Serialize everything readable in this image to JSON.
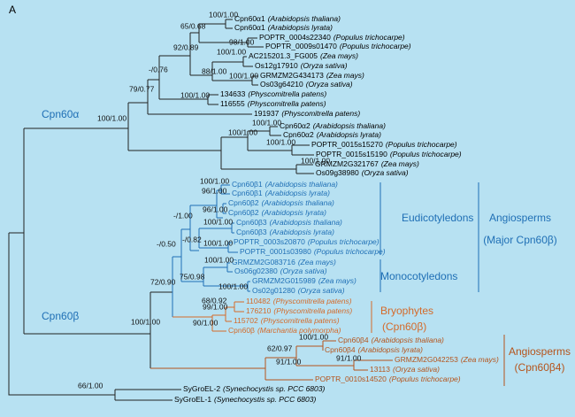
{
  "panel_label": "A",
  "leaves": [
    {
      "name": "Cpn60α1",
      "species": "(Arabidopsis thaliana)",
      "color": "#000000"
    },
    {
      "name": "Cpn60α1",
      "species": "(Arabidopsis lyrata)",
      "color": "#000000"
    },
    {
      "name": "POPTR_0004s22340",
      "species": "(Populus trichocarpe)",
      "color": "#000000"
    },
    {
      "name": "POPTR_0009s01470",
      "species": "(Populus trichocarpe)",
      "color": "#000000"
    },
    {
      "name": "AC215201.3_FG005",
      "species": "(Zea mays)",
      "color": "#000000"
    },
    {
      "name": "Os12g17910",
      "species": "(Oryza sativa)",
      "color": "#000000"
    },
    {
      "name": "GRMZM2G434173",
      "species": "(Zea mays)",
      "color": "#000000"
    },
    {
      "name": "Os03g64210",
      "species": "(Oryza sativa)",
      "color": "#000000"
    },
    {
      "name": "134633",
      "species": "(Physcomitrella patens)",
      "color": "#000000"
    },
    {
      "name": "116555",
      "species": "(Physcomitrella patens)",
      "color": "#000000"
    },
    {
      "name": "191937",
      "species": "(Physcomitrella patens)",
      "color": "#000000"
    },
    {
      "name": "Cpn60α2",
      "species": "(Arabidopsis thaliana)",
      "color": "#000000"
    },
    {
      "name": "Cpn60α2",
      "species": "(Arabidopsis lyrata)",
      "color": "#000000"
    },
    {
      "name": "POPTR_0015s15270",
      "species": "(Populus trichocarpe)",
      "color": "#000000"
    },
    {
      "name": "POPTR_0015s15190",
      "species": "(Populus trichocarpe)",
      "color": "#000000"
    },
    {
      "name": "GRMZM2G321767",
      "species": "(Zea mays)",
      "color": "#000000"
    },
    {
      "name": "Os09g38980",
      "species": "(Oryza sativa)",
      "color": "#000000"
    },
    {
      "name": "Cpn60β1",
      "species": "(Arabidopsis thaliana)",
      "color": "#1f6fb5"
    },
    {
      "name": "Cpn60β1",
      "species": "(Arabidopsis lyrata)",
      "color": "#1f6fb5"
    },
    {
      "name": "Cpn60β2",
      "species": "(Arabidopsis thaliana)",
      "color": "#1f6fb5"
    },
    {
      "name": "Cpn60β2",
      "species": "(Arabidopsis lyrata)",
      "color": "#1f6fb5"
    },
    {
      "name": "Cpn60β3",
      "species": "(Arabidopsis thaliana)",
      "color": "#1f6fb5"
    },
    {
      "name": "Cpn60β3",
      "species": "(Arabidopsis lyrata)",
      "color": "#1f6fb5"
    },
    {
      "name": "POPTR_0003s20870",
      "species": "(Populus trichocarpe)",
      "color": "#1f6fb5"
    },
    {
      "name": "POPTR_0001s03980",
      "species": "(Populus trichocarpe)",
      "color": "#1f6fb5"
    },
    {
      "name": "GRMZM2G083716",
      "species": "(Zea mays)",
      "color": "#1f6fb5"
    },
    {
      "name": "Os06g02380",
      "species": "(Oryza sativa)",
      "color": "#1f6fb5"
    },
    {
      "name": "GRMZM2G015989",
      "species": "(Zea mays)",
      "color": "#1f6fb5"
    },
    {
      "name": "Os02g01280",
      "species": "(Oryza sativa)",
      "color": "#1f6fb5"
    },
    {
      "name": "110482",
      "species": "(Physcomitrella patens)",
      "color": "#d46a2a"
    },
    {
      "name": "176210",
      "species": "(Physcomitrella patens)",
      "color": "#d46a2a"
    },
    {
      "name": "115702",
      "species": "(Physcomitrella patens)",
      "color": "#d46a2a"
    },
    {
      "name": "Cpn60β",
      "species": "(Marchantia polymorpha)",
      "color": "#d46a2a"
    },
    {
      "name": "Cpn60β4",
      "species": "(Arabidopsis thaliana)",
      "color": "#b5541c"
    },
    {
      "name": "Cpn60β4",
      "species": "(Arabidopsis lyrata)",
      "color": "#b5541c"
    },
    {
      "name": "GRMZM2G042253",
      "species": "(Zea mays)",
      "color": "#b5541c"
    },
    {
      "name": "13113",
      "species": "(Oryza sativa)",
      "color": "#b5541c"
    },
    {
      "name": "POPTR_0010s14520",
      "species": "(Populus trichocarpe)",
      "color": "#b5541c"
    },
    {
      "name": "SyGroEL-2",
      "species": "(Synechocystis sp. PCC 6803)",
      "color": "#000000"
    },
    {
      "name": "SyGroEL-1",
      "species": "(Synechocystis sp. PCC 6803)",
      "color": "#000000"
    }
  ],
  "supports": [
    "100/1.00",
    "65/0.68",
    "92/0.89",
    "98/1.00",
    "100/1.00",
    "88/1.00",
    "100/1.00",
    "-/0.76",
    "79/0.77",
    "100/1.00",
    "100/1.00",
    "100/1.00",
    "100/1.00",
    "100/1.00",
    "100/1.00",
    "100/1.00",
    "96/1.00",
    "96/1.00",
    "100/1.00",
    "-/1.00",
    "-/0.82",
    "100/1.00",
    "-/0.50",
    "100/1.00",
    "75/0.98",
    "100/1.00",
    "72/0.90",
    "68/0.92",
    "99/1.00",
    "90/1.00",
    "100/1.00",
    "100/1.00",
    "62/0.97",
    "91/1.00",
    "91/1.00",
    "66/1.00"
  ],
  "clades": [
    {
      "text": "Cpn60α",
      "color": "#1f6fb5"
    },
    {
      "text": "Cpn60β",
      "color": "#1f6fb5"
    },
    {
      "text": "Eudicotyledons",
      "color": "#1f6fb5"
    },
    {
      "text": "Monocotyledons",
      "color": "#1f6fb5"
    },
    {
      "text": "Angiosperms",
      "color": "#1f6fb5"
    },
    {
      "text": "(Major Cpn60β)",
      "color": "#1f6fb5"
    },
    {
      "text": "Bryophytes",
      "color": "#d46a2a"
    },
    {
      "text": "(Cpn60β)",
      "color": "#d46a2a"
    },
    {
      "text": "Angiosperms",
      "color": "#b5541c"
    },
    {
      "text": "(Cpn60β4)",
      "color": "#b5541c"
    }
  ]
}
